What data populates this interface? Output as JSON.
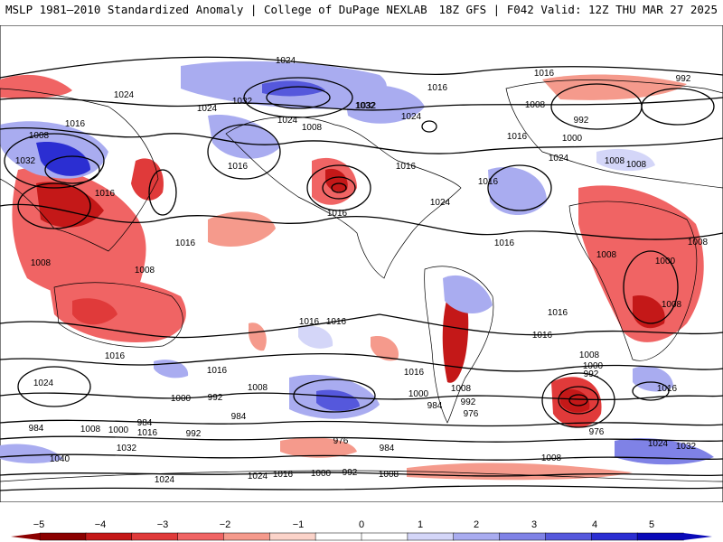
{
  "header": {
    "left": "MSLP 1981–2010 Standardized Anomaly | College of DuPage NEXLAB",
    "right": "18Z GFS | F042 Valid: 12Z THU MAR 27 2025"
  },
  "colorbar": {
    "ticks": [
      "−5",
      "−4",
      "−3",
      "−2",
      "−1",
      "0",
      "1",
      "2",
      "3",
      "4",
      "5"
    ],
    "colors": [
      "#8b0000",
      "#c41818",
      "#e03a3a",
      "#f06464",
      "#f59a8c",
      "#fbd3c9",
      "#ffffff",
      "#ffffff",
      "#d4d6f8",
      "#a9acf0",
      "#7f82e6",
      "#5558dc",
      "#2b2ed2",
      "#0a0ab8"
    ]
  },
  "contours": {
    "labels": [
      "1024",
      "1016",
      "1008",
      "1032",
      "1016",
      "1024",
      "1016",
      "1008",
      "1024",
      "1032",
      "1016",
      "1024",
      "1016",
      "1008",
      "1032",
      "1024",
      "1016",
      "992",
      "992",
      "1000",
      "1016",
      "1008",
      "1016",
      "1008",
      "1016",
      "1008",
      "1008",
      "1000",
      "1016",
      "1008",
      "1008",
      "1016",
      "1016",
      "1016",
      "1016",
      "1016",
      "1024",
      "1008",
      "1000",
      "992",
      "984",
      "1032",
      "1040",
      "984",
      "1000",
      "992",
      "1016",
      "1008",
      "984",
      "1024",
      "976",
      "976",
      "984",
      "992",
      "1000",
      "1008",
      "1016",
      "1024",
      "1024",
      "1032",
      "1016",
      "1008",
      "992",
      "1000",
      "1008",
      "1000",
      "992",
      "976",
      "984",
      "1016",
      "1008",
      "1024",
      "1032",
      "1016",
      "1024",
      "1008",
      "1016"
    ]
  }
}
